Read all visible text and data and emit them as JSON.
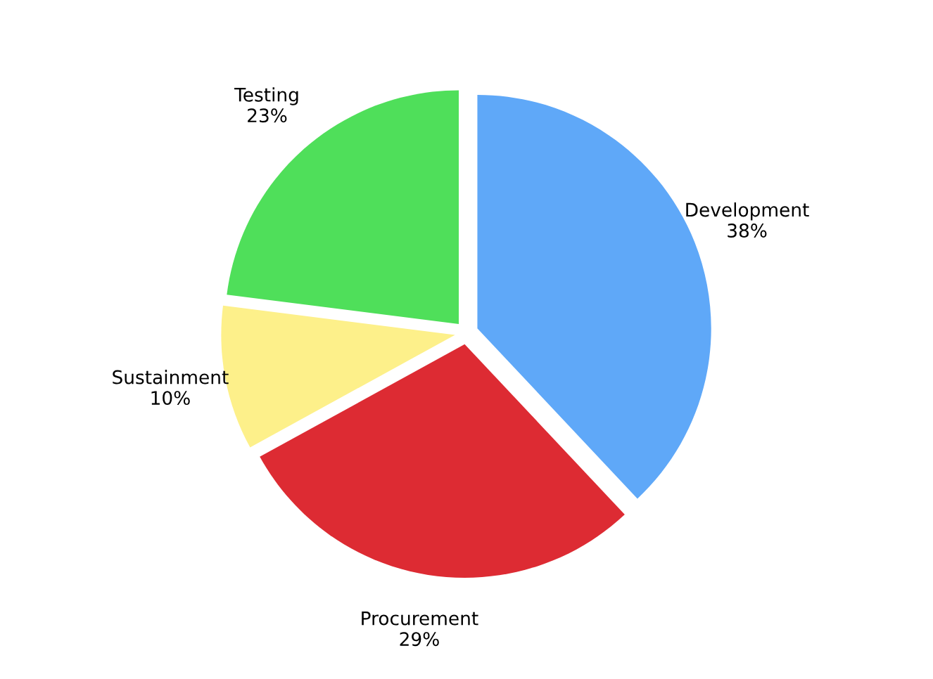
{
  "chart_data": {
    "type": "pie",
    "categories": [
      "Development",
      "Procurement",
      "Sustainment",
      "Testing"
    ],
    "values": [
      38,
      29,
      10,
      23
    ],
    "value_labels": [
      "38%",
      "29%",
      "10%",
      "23%"
    ],
    "colors": [
      "#5fa8f8",
      "#dd2b33",
      "#fdf08a",
      "#4fdf5a"
    ],
    "legend": false
  }
}
